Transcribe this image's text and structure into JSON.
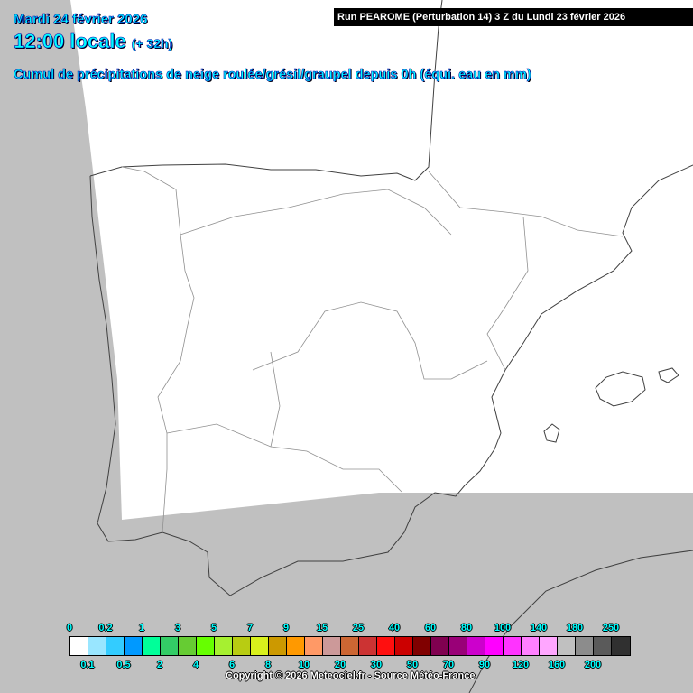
{
  "header": {
    "date": "Mardi 24 février 2026",
    "hour": "12:00 locale",
    "offset": "(+ 32h)",
    "subtitle": "Cumul de précipitations de neige roulée/grésil/graupel depuis 0h (équi. eau en mm)",
    "run": "Run PEAROME (Perturbation 14) 3 Z du Lundi 23 février 2026"
  },
  "map": {
    "region": "Iberian Peninsula",
    "colors": {
      "outside_domain": "#c0c0c0",
      "domain": "#ffffff",
      "borders": "#808080",
      "coast": "#404040"
    }
  },
  "legend": {
    "colors": [
      "#ffffff",
      "#99e6ff",
      "#33ccff",
      "#0099ff",
      "#00ff99",
      "#33cc66",
      "#66cc33",
      "#66ff00",
      "#a6f030",
      "#b8cc12",
      "#d9f01c",
      "#cc9900",
      "#ff9900",
      "#ff9966",
      "#cc9999",
      "#cc6633",
      "#cc3333",
      "#ff0f0f",
      "#cc0000",
      "#800000",
      "#800050",
      "#990077",
      "#cc00cc",
      "#ff00ff",
      "#ff33ff",
      "#ff80ff",
      "#ffa6ff",
      "#c0c0c0",
      "#8c8c8c",
      "#5a5a5a",
      "#303030"
    ],
    "top_labels": [
      "0",
      "0.2",
      "1",
      "3",
      "5",
      "7",
      "9",
      "15",
      "25",
      "40",
      "60",
      "80",
      "100",
      "140",
      "180",
      "250"
    ],
    "bottom_labels": [
      "0.1",
      "0.5",
      "2",
      "4",
      "6",
      "8",
      "10",
      "20",
      "30",
      "50",
      "70",
      "90",
      "120",
      "160",
      "200"
    ]
  },
  "footer": {
    "copyright": "Copyright © 2026 Meteociel.fr - Source Météo-France"
  }
}
